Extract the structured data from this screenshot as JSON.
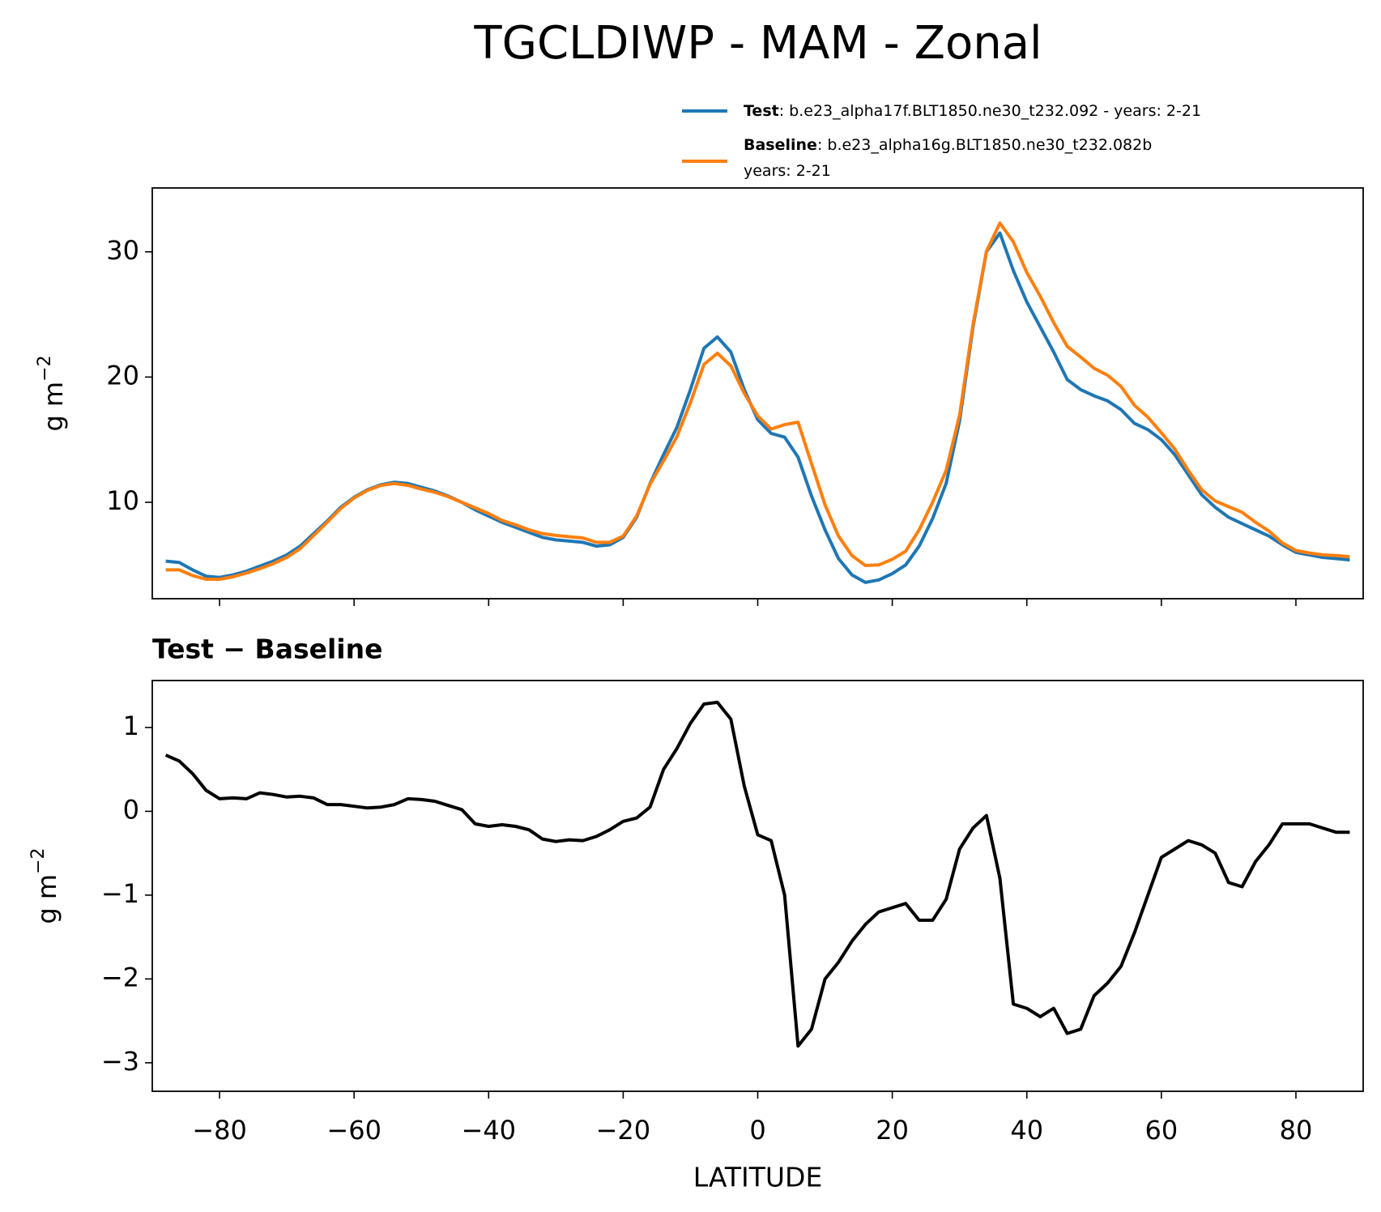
{
  "title": "TGCLDIWP - MAM - Zonal",
  "chart_data": [
    {
      "type": "line",
      "ylabel": "g m",
      "ylabel_exponent": "−2",
      "x": [
        -88,
        -86,
        -84,
        -82,
        -80,
        -78,
        -76,
        -74,
        -72,
        -70,
        -68,
        -66,
        -64,
        -62,
        -60,
        -58,
        -56,
        -54,
        -52,
        -50,
        -48,
        -46,
        -44,
        -42,
        -40,
        -38,
        -36,
        -34,
        -32,
        -30,
        -28,
        -26,
        -24,
        -22,
        -20,
        -18,
        -16,
        -14,
        -12,
        -10,
        -8,
        -6,
        -4,
        -2,
        0,
        2,
        4,
        6,
        8,
        10,
        12,
        14,
        16,
        18,
        20,
        22,
        24,
        26,
        28,
        30,
        32,
        34,
        36,
        38,
        40,
        42,
        44,
        46,
        48,
        50,
        52,
        54,
        56,
        58,
        60,
        62,
        64,
        66,
        68,
        70,
        72,
        74,
        76,
        78,
        80,
        82,
        84,
        86,
        88
      ],
      "series": [
        {
          "name": "Test",
          "legend_text": [
            ": b.e23_alpha17f.BLT1850.ne30_t232.092 - years: 2-21"
          ],
          "color": "#1f77b4",
          "values": [
            5.3,
            5.2,
            4.6,
            4.1,
            4.0,
            4.2,
            4.5,
            4.9,
            5.3,
            5.8,
            6.5,
            7.5,
            8.5,
            9.6,
            10.4,
            11.0,
            11.4,
            11.6,
            11.5,
            11.2,
            10.9,
            10.5,
            10.0,
            9.4,
            8.9,
            8.4,
            8.0,
            7.6,
            7.2,
            7.0,
            6.9,
            6.8,
            6.5,
            6.6,
            7.2,
            8.8,
            11.5,
            13.8,
            16.0,
            19.0,
            22.3,
            23.2,
            22.0,
            19.0,
            16.6,
            15.5,
            15.2,
            13.6,
            10.5,
            7.8,
            5.5,
            4.2,
            3.6,
            3.8,
            4.3,
            5.0,
            6.5,
            8.7,
            11.5,
            16.5,
            24.0,
            30.0,
            31.5,
            28.5,
            26.0,
            24.0,
            22.0,
            19.8,
            19.0,
            18.5,
            18.1,
            17.4,
            16.3,
            15.8,
            15.0,
            13.8,
            12.2,
            10.6,
            9.6,
            8.8,
            8.3,
            7.8,
            7.3,
            6.6,
            6.0,
            5.8,
            5.6,
            5.5,
            5.4
          ]
        },
        {
          "name": "Baseline",
          "legend_text": [
            ": b.e23_alpha16g.BLT1850.ne30_t232.082b",
            "years: 2-21"
          ],
          "color": "#ff7f0e",
          "values": [
            4.6,
            4.6,
            4.15,
            3.85,
            3.85,
            4.05,
            4.35,
            4.7,
            5.1,
            5.6,
            6.3,
            7.35,
            8.4,
            9.5,
            10.35,
            10.95,
            11.35,
            11.5,
            11.35,
            11.05,
            10.8,
            10.45,
            10.0,
            9.55,
            9.1,
            8.55,
            8.2,
            7.8,
            7.5,
            7.35,
            7.25,
            7.15,
            6.8,
            6.8,
            7.3,
            8.9,
            11.45,
            13.3,
            15.25,
            17.95,
            21.0,
            21.9,
            20.9,
            18.7,
            16.9,
            15.85,
            16.2,
            16.4,
            13.1,
            9.8,
            7.3,
            5.75,
            4.95,
            5.0,
            5.45,
            6.1,
            7.8,
            10.0,
            12.55,
            16.95,
            24.2,
            30.05,
            32.3,
            30.8,
            28.35,
            26.45,
            24.35,
            22.45,
            21.6,
            20.7,
            20.15,
            19.25,
            17.75,
            16.8,
            15.55,
            14.25,
            12.55,
            11.0,
            10.1,
            9.65,
            9.2,
            8.4,
            7.7,
            6.75,
            6.15,
            5.95,
            5.8,
            5.75,
            5.65
          ]
        }
      ],
      "xlim": [
        -90,
        90
      ],
      "ylim": [
        2.3,
        35.1
      ],
      "yticks": [
        10,
        20,
        30
      ]
    },
    {
      "type": "line",
      "title": "Test − Baseline",
      "xlabel": "LATITUDE",
      "ylabel": "g m",
      "ylabel_exponent": "−2",
      "x": [
        -88,
        -86,
        -84,
        -82,
        -80,
        -78,
        -76,
        -74,
        -72,
        -70,
        -68,
        -66,
        -64,
        -62,
        -60,
        -58,
        -56,
        -54,
        -52,
        -50,
        -48,
        -46,
        -44,
        -42,
        -40,
        -38,
        -36,
        -34,
        -32,
        -30,
        -28,
        -26,
        -24,
        -22,
        -20,
        -18,
        -16,
        -14,
        -12,
        -10,
        -8,
        -6,
        -4,
        -2,
        0,
        2,
        4,
        6,
        8,
        10,
        12,
        14,
        16,
        18,
        20,
        22,
        24,
        26,
        28,
        30,
        32,
        34,
        36,
        38,
        40,
        42,
        44,
        46,
        48,
        50,
        52,
        54,
        56,
        58,
        60,
        62,
        64,
        66,
        68,
        70,
        72,
        74,
        76,
        78,
        80,
        82,
        84,
        86,
        88
      ],
      "series": [
        {
          "color": "#000000",
          "values": [
            0.67,
            0.6,
            0.45,
            0.25,
            0.15,
            0.16,
            0.15,
            0.22,
            0.2,
            0.17,
            0.18,
            0.16,
            0.08,
            0.08,
            0.06,
            0.04,
            0.05,
            0.08,
            0.15,
            0.14,
            0.12,
            0.07,
            0.02,
            -0.15,
            -0.18,
            -0.16,
            -0.18,
            -0.22,
            -0.33,
            -0.36,
            -0.34,
            -0.35,
            -0.3,
            -0.22,
            -0.12,
            -0.08,
            0.05,
            0.5,
            0.75,
            1.05,
            1.28,
            1.3,
            1.1,
            0.3,
            -0.28,
            -0.35,
            -1.0,
            -2.8,
            -2.6,
            -2.0,
            -1.8,
            -1.55,
            -1.35,
            -1.2,
            -1.15,
            -1.1,
            -1.3,
            -1.3,
            -1.05,
            -0.45,
            -0.2,
            -0.05,
            -0.8,
            -2.3,
            -2.35,
            -2.45,
            -2.35,
            -2.65,
            -2.6,
            -2.2,
            -2.05,
            -1.85,
            -1.45,
            -1.0,
            -0.55,
            -0.45,
            -0.35,
            -0.4,
            -0.5,
            -0.85,
            -0.9,
            -0.6,
            -0.4,
            -0.15,
            -0.15,
            -0.15,
            -0.2,
            -0.25,
            -0.25
          ]
        }
      ],
      "xlim": [
        -90,
        90
      ],
      "ylim": [
        -3.34,
        1.56
      ],
      "xticks": [
        {
          "value": -80,
          "label": "−80"
        },
        {
          "value": -60,
          "label": "−60"
        },
        {
          "value": -40,
          "label": "−40"
        },
        {
          "value": -20,
          "label": "−20"
        },
        0,
        20,
        40,
        60,
        80
      ],
      "yticks": [
        {
          "value": -3,
          "label": "−3"
        },
        {
          "value": -2,
          "label": "−2"
        },
        {
          "value": -1,
          "label": "−1"
        },
        0,
        1
      ]
    }
  ]
}
